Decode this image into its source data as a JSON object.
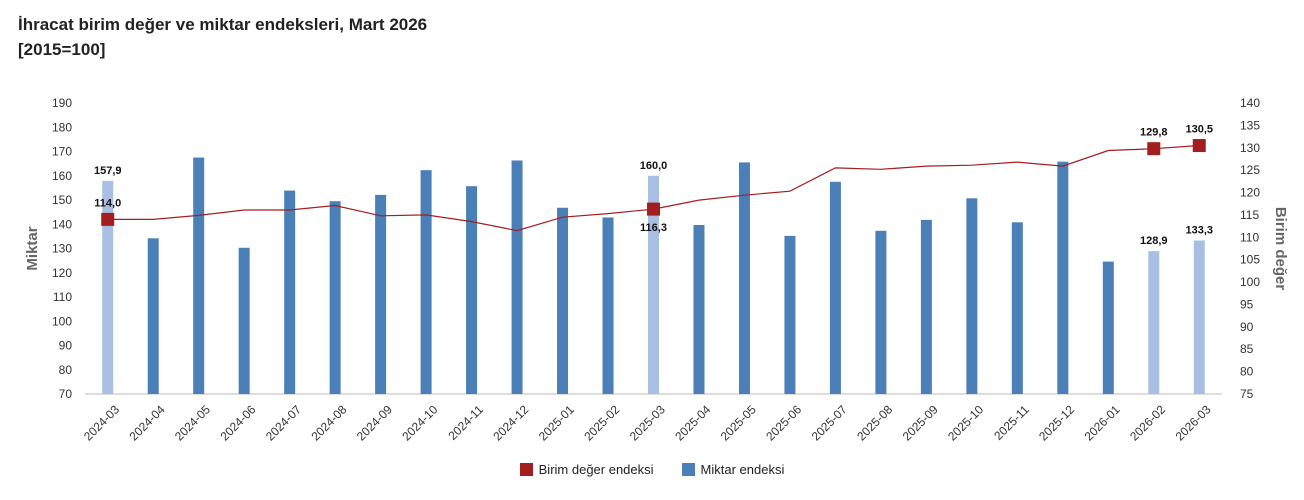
{
  "title": "İhracat birim değer ve miktar endeksleri, Mart 2026",
  "subtitle": "[2015=100]",
  "colors": {
    "bar": "#4a7fb8",
    "bar_highlight": "#a8bfe3",
    "line": "#a31f1f",
    "marker": "#a31f1f",
    "axis": "#bbbbbb"
  },
  "chart_data": {
    "type": "bar",
    "categories": [
      "2024-03",
      "2024-04",
      "2024-05",
      "2024-06",
      "2024-07",
      "2024-08",
      "2024-09",
      "2024-10",
      "2024-11",
      "2024-12",
      "2025-01",
      "2025-02",
      "2025-03",
      "2025-04",
      "2025-05",
      "2025-06",
      "2025-07",
      "2025-08",
      "2025-09",
      "2025-10",
      "2025-11",
      "2025-12",
      "2026-01",
      "2026-02",
      "2026-03"
    ],
    "series": [
      {
        "name": "Miktar endeksi",
        "type": "bar",
        "axis": "left",
        "values": [
          157.9,
          134.2,
          167.5,
          130.3,
          153.9,
          149.5,
          152.1,
          162.3,
          155.7,
          166.3,
          146.8,
          142.8,
          160.0,
          139.7,
          165.5,
          135.2,
          157.5,
          137.3,
          141.8,
          150.7,
          140.8,
          165.8,
          124.6,
          128.9,
          133.3
        ],
        "highlight": [
          0,
          12,
          23,
          24
        ]
      },
      {
        "name": "Birim değer endeksi",
        "type": "line",
        "axis": "right",
        "values": [
          114.0,
          114.0,
          114.9,
          116.1,
          116.1,
          117.1,
          114.8,
          115.0,
          113.5,
          111.5,
          114.5,
          115.3,
          116.3,
          118.3,
          119.4,
          120.3,
          125.5,
          125.2,
          125.9,
          126.1,
          126.8,
          125.9,
          129.4,
          129.8,
          130.5
        ],
        "markers": [
          0,
          12,
          23,
          24
        ]
      }
    ],
    "bar_labels": [
      {
        "index": 0,
        "text": "157,9"
      },
      {
        "index": 12,
        "text": "160,0"
      },
      {
        "index": 23,
        "text": "128,9"
      },
      {
        "index": 24,
        "text": "133,3"
      }
    ],
    "line_labels": [
      {
        "index": 0,
        "text": "114,0",
        "position": "above"
      },
      {
        "index": 12,
        "text": "116,3",
        "position": "below"
      },
      {
        "index": 23,
        "text": "129,8",
        "position": "above"
      },
      {
        "index": 24,
        "text": "130,5",
        "position": "above"
      }
    ],
    "y_left": {
      "label": "Miktar",
      "min": 70,
      "max": 190,
      "step": 10
    },
    "y_right": {
      "label": "Birim değer",
      "min": 75,
      "max": 140,
      "step": 5
    },
    "grid": false,
    "legend_position": "bottom"
  }
}
